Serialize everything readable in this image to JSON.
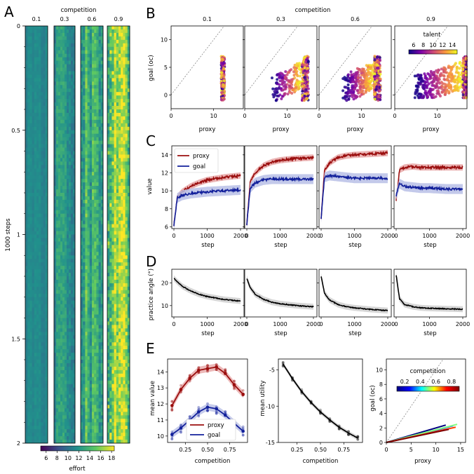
{
  "colors": {
    "proxy": "#9b0f0f",
    "goal": "#12209b",
    "practice": "#000000",
    "band_proxy": "#e7a7a7",
    "band_goal": "#b9bfe6",
    "band_practice": "#cfcfcf",
    "viridis": [
      "#440154",
      "#3b528b",
      "#21918c",
      "#5ec962",
      "#fde725"
    ],
    "plasma": [
      "#0d0887",
      "#7e03a8",
      "#cc4778",
      "#f89540",
      "#f0f921"
    ],
    "jet": [
      "#00007f",
      "#0000ff",
      "#00ffff",
      "#ffff00",
      "#ff0000",
      "#7f0000"
    ]
  },
  "panels": {
    "A": {
      "letter": "A",
      "top_title": "competition",
      "competition_levels": [
        "0.1",
        "0.3",
        "0.6",
        "0.9"
      ],
      "ylabel": "1000 steps",
      "yticks": [
        "0",
        "0.5",
        "1",
        "1.5",
        "2"
      ],
      "colorbar_label": "effort",
      "colorbar_ticks": [
        "6",
        "8",
        "10",
        "12",
        "14",
        "16",
        "18"
      ],
      "colorbar_range": [
        5,
        18.5
      ]
    },
    "B": {
      "letter": "B",
      "top_title": "competition",
      "competition_levels": [
        "0.1",
        "0.3",
        "0.6",
        "0.9"
      ],
      "ylabel": "goal (oc)",
      "xlabel": "proxy",
      "yticks": [
        "0",
        "5",
        "10"
      ],
      "xticks": [
        "0",
        "10"
      ],
      "colorbar_label": "talent",
      "colorbar_ticks": [
        "6",
        "8",
        "10",
        "12",
        "14"
      ]
    },
    "C": {
      "letter": "C",
      "ylabel": "value",
      "xlabel": "step",
      "yticks": [
        "6",
        "8",
        "10",
        "12",
        "14"
      ],
      "xticks": [
        "0",
        "1000",
        "2000"
      ],
      "legend": [
        "proxy",
        "goal"
      ]
    },
    "D": {
      "letter": "D",
      "ylabel": "practice angle (°)",
      "xlabel": "step",
      "yticks": [
        "10",
        "20"
      ],
      "xticks": [
        "0",
        "1000",
        "2000"
      ]
    },
    "E": {
      "letter": "E",
      "left": {
        "ylabel": "mean value",
        "xlabel": "competition",
        "yticks": [
          "10",
          "11",
          "12",
          "13",
          "14"
        ],
        "xticks": [
          "0.25",
          "0.50",
          "0.75"
        ],
        "legend": [
          "proxy",
          "goal"
        ]
      },
      "middle": {
        "ylabel": "mean utility",
        "xlabel": "competition",
        "yticks": [
          "-5",
          "-10",
          "-15"
        ],
        "xticks": [
          "0.25",
          "0.50",
          "0.75"
        ]
      },
      "right": {
        "ylabel": "goal (oc)",
        "xlabel": "proxy",
        "yticks": [
          "0",
          "2",
          "4",
          "6",
          "8",
          "10"
        ],
        "xticks": [
          "0",
          "5",
          "10",
          "15"
        ],
        "colorbar_label": "competition",
        "colorbar_ticks": [
          "0.2",
          "0.4",
          "0.6",
          "0.8"
        ]
      }
    }
  },
  "chart_data": [
    {
      "panel": "A",
      "type": "heatmap",
      "columns": [
        "0.1",
        "0.3",
        "0.6",
        "0.9"
      ],
      "y_unit": "1000 steps",
      "y_range": [
        0,
        2
      ],
      "mean_effort": [
        11.2,
        11.8,
        13.6,
        15.2
      ],
      "colorbar": {
        "label": "effort",
        "range": [
          5,
          18.5
        ]
      }
    },
    {
      "panel": "B",
      "type": "scatter",
      "xlabel": "proxy",
      "ylabel": "goal (oc)",
      "xlim": [
        0,
        17
      ],
      "ylim": [
        -2.5,
        12.5
      ],
      "identity_line": true,
      "series": [
        {
          "competition": "0.1",
          "proxy_range": [
            11.8,
            12.6
          ],
          "goal_range": [
            -1.5,
            7.5
          ]
        },
        {
          "competition": "0.3",
          "proxy_range": [
            7,
            14.5
          ],
          "goal_range": [
            -1,
            7.5
          ]
        },
        {
          "competition": "0.6",
          "proxy_range": [
            6,
            14
          ],
          "goal_range": [
            -1,
            7
          ]
        },
        {
          "competition": "0.9",
          "proxy_range": [
            5,
            17
          ],
          "goal_range": [
            -0.5,
            7
          ]
        }
      ],
      "color_scale": {
        "label": "talent",
        "range": [
          5,
          15
        ]
      }
    },
    {
      "panel": "C",
      "type": "line",
      "xlabel": "step",
      "ylabel": "value",
      "xlim": [
        0,
        2000
      ],
      "ylim": [
        5.8,
        15
      ],
      "series": [
        {
          "name": "proxy",
          "competition": "0.1",
          "x": [
            0,
            100,
            250,
            500,
            750,
            1000,
            1500,
            2000
          ],
          "values": [
            6.2,
            9.3,
            9.9,
            10.5,
            10.9,
            11.2,
            11.5,
            11.7
          ]
        },
        {
          "name": "goal",
          "competition": "0.1",
          "x": [
            0,
            100,
            250,
            500,
            750,
            1000,
            1500,
            2000
          ],
          "values": [
            6.2,
            9.2,
            9.5,
            9.7,
            9.8,
            9.9,
            10.0,
            10.1
          ]
        },
        {
          "name": "proxy",
          "competition": "0.3",
          "x": [
            0,
            100,
            250,
            500,
            750,
            1000,
            1500,
            2000
          ],
          "values": [
            6.3,
            11.0,
            12.0,
            12.8,
            13.2,
            13.4,
            13.6,
            13.7
          ]
        },
        {
          "name": "goal",
          "competition": "0.3",
          "x": [
            0,
            100,
            250,
            500,
            750,
            1000,
            1500,
            2000
          ],
          "values": [
            6.3,
            10.3,
            10.9,
            11.2,
            11.3,
            11.3,
            11.3,
            11.3
          ]
        },
        {
          "name": "proxy",
          "competition": "0.6",
          "x": [
            0,
            100,
            250,
            500,
            750,
            1000,
            1500,
            2000
          ],
          "values": [
            7.0,
            12.3,
            13.1,
            13.7,
            13.9,
            14.0,
            14.1,
            14.2
          ]
        },
        {
          "name": "goal",
          "competition": "0.6",
          "x": [
            0,
            100,
            250,
            500,
            750,
            1000,
            1500,
            2000
          ],
          "values": [
            7.0,
            11.5,
            11.7,
            11.6,
            11.5,
            11.4,
            11.4,
            11.4
          ]
        },
        {
          "name": "proxy",
          "competition": "0.9",
          "x": [
            0,
            100,
            250,
            500,
            750,
            1000,
            1500,
            2000
          ],
          "values": [
            9.0,
            12.3,
            12.6,
            12.7,
            12.6,
            12.6,
            12.6,
            12.6
          ]
        },
        {
          "name": "goal",
          "competition": "0.9",
          "x": [
            0,
            100,
            250,
            500,
            750,
            1000,
            1500,
            2000
          ],
          "values": [
            9.5,
            10.8,
            10.5,
            10.4,
            10.3,
            10.3,
            10.2,
            10.2
          ]
        }
      ]
    },
    {
      "panel": "D",
      "type": "line",
      "xlabel": "step",
      "ylabel": "practice angle (°)",
      "xlim": [
        0,
        2000
      ],
      "ylim": [
        5,
        26
      ],
      "series": [
        {
          "competition": "0.1",
          "x": [
            0,
            100,
            250,
            500,
            750,
            1000,
            1500,
            2000
          ],
          "values": [
            22,
            20.5,
            18.5,
            16.5,
            15,
            14,
            12.7,
            12
          ]
        },
        {
          "competition": "0.3",
          "x": [
            0,
            100,
            250,
            500,
            750,
            1000,
            1500,
            2000
          ],
          "values": [
            22,
            18,
            15,
            12.8,
            11.5,
            10.8,
            10,
            9.5
          ]
        },
        {
          "competition": "0.6",
          "x": [
            0,
            100,
            250,
            500,
            750,
            1000,
            1500,
            2000
          ],
          "values": [
            23,
            15.5,
            12.5,
            10.5,
            9.5,
            9,
            8.3,
            7.8
          ]
        },
        {
          "competition": "0.9",
          "x": [
            0,
            100,
            250,
            500,
            750,
            1000,
            1500,
            2000
          ],
          "values": [
            23.5,
            13,
            10.5,
            9.5,
            9,
            8.8,
            8.6,
            8.4
          ]
        }
      ]
    },
    {
      "panel": "E-left",
      "type": "line",
      "xlabel": "competition",
      "ylabel": "mean value",
      "xlim": [
        0.05,
        0.95
      ],
      "ylim": [
        9.6,
        14.8
      ],
      "x": [
        0.1,
        0.2,
        0.3,
        0.4,
        0.5,
        0.6,
        0.7,
        0.8,
        0.9
      ],
      "series": [
        {
          "name": "proxy",
          "values": [
            11.9,
            12.9,
            13.6,
            14.1,
            14.2,
            14.3,
            13.9,
            13.2,
            12.6
          ]
        },
        {
          "name": "goal",
          "values": [
            10.1,
            10.5,
            11.0,
            11.5,
            11.8,
            11.7,
            11.3,
            10.8,
            10.3
          ]
        }
      ]
    },
    {
      "panel": "E-middle",
      "type": "line",
      "xlabel": "competition",
      "ylabel": "mean utility",
      "xlim": [
        0.05,
        0.95
      ],
      "ylim": [
        -15,
        -3.5
      ],
      "x": [
        0.1,
        0.2,
        0.3,
        0.4,
        0.5,
        0.6,
        0.7,
        0.8,
        0.9
      ],
      "values": [
        -4.2,
        -6.2,
        -8.0,
        -9.5,
        -10.8,
        -11.9,
        -12.9,
        -13.7,
        -14.4
      ]
    },
    {
      "panel": "E-right",
      "type": "line",
      "xlabel": "proxy",
      "ylabel": "goal (oc)",
      "xlim": [
        0,
        16
      ],
      "ylim": [
        0,
        11.5
      ],
      "identity_line": true,
      "series": [
        {
          "competition": 0.1,
          "end": [
            12,
            2.4
          ]
        },
        {
          "competition": 0.3,
          "end": [
            13.5,
            2.3
          ]
        },
        {
          "competition": 0.5,
          "end": [
            14.3,
            2.5
          ]
        },
        {
          "competition": 0.7,
          "end": [
            14,
            2.1
          ]
        },
        {
          "competition": 0.9,
          "end": [
            12.6,
            1.8
          ]
        }
      ],
      "colorbar": {
        "label": "competition",
        "range": [
          0.1,
          0.9
        ]
      }
    }
  ]
}
